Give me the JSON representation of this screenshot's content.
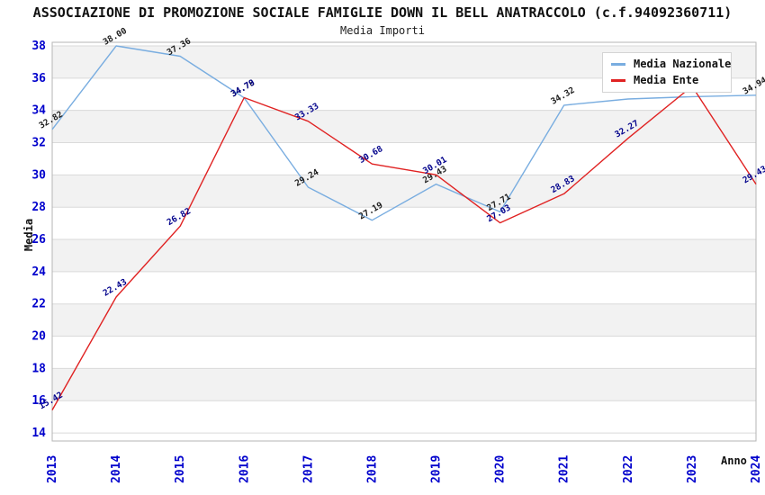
{
  "header": {
    "title": "ASSOCIAZIONE DI PROMOZIONE SOCIALE FAMIGLIE DOWN IL BELL ANATRACCOLO (c.f.94092360711)",
    "subtitle": "Media Importi"
  },
  "colors": {
    "national_line": "#79ade0",
    "entity_line": "#e02222",
    "tick_label": "#0000cc",
    "band": "#f2f2f2",
    "gridline": "#dadada",
    "plot_border": "#b5b5b5",
    "national_data_label": "#1c1c1c",
    "entity_data_label": "#00008b"
  },
  "chart_data": {
    "type": "line",
    "title": "ASSOCIAZIONE DI PROMOZIONE SOCIALE FAMIGLIE DOWN IL BELL ANATRACCOLO (c.f.94092360711)",
    "subtitle": "Media Importi",
    "xlabel": "Anno",
    "ylabel": "Media",
    "ylim": [
      14,
      38
    ],
    "ytick_step": 2,
    "yticks": [
      38,
      36,
      34,
      32,
      30,
      28,
      26,
      24,
      22,
      20,
      18,
      16,
      14
    ],
    "grid": "horizontal-bands",
    "legend_position": "top-right",
    "categories": [
      "2013",
      "2014",
      "2015",
      "2016",
      "2017",
      "2018",
      "2019",
      "2020",
      "2021",
      "2022",
      "2023",
      "2024"
    ],
    "series": [
      {
        "name": "Media Nazionale",
        "color": "#79ade0",
        "label_color": "#1c1c1c",
        "values": [
          32.82,
          38.0,
          37.36,
          34.78,
          29.24,
          27.19,
          29.43,
          27.71,
          34.32,
          34.71,
          34.85,
          34.94
        ],
        "label_hidden_indices": [
          9,
          10
        ],
        "note": "labels for 2022 and 2023 are obscured by the legend box; their values are estimated from the line position"
      },
      {
        "name": "Media Ente",
        "color": "#e02222",
        "label_color": "#00008b",
        "values": [
          15.42,
          22.43,
          26.82,
          34.79,
          33.33,
          30.68,
          30.01,
          27.03,
          28.83,
          32.27,
          35.5,
          29.43
        ],
        "label_hidden_indices": [
          10
        ],
        "note": "label for the 2023 peak is obscured by the legend box; its value is estimated from the line position"
      }
    ]
  }
}
